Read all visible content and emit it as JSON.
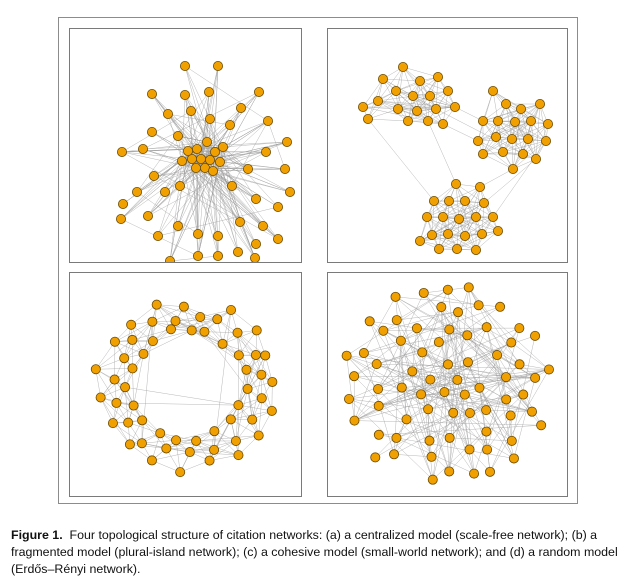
{
  "caption": {
    "label": "Figure 1.",
    "text": "Four topological structure of citation networks: (a) a centralized model (scale-free network); (b) a fragmented model (plural-island network); (c) a cohesive model (small-world network); and (d) a random model (Erdős–Rényi network)."
  },
  "colors": {
    "node_fill": "#f0a000",
    "node_stroke": "#6b4a00",
    "edge": "#9a9a9a",
    "frame": "#8c8c8c"
  },
  "panels": [
    {
      "id": "a",
      "model": "centralized",
      "network": "scale-free"
    },
    {
      "id": "b",
      "model": "fragmented",
      "network": "plural-island"
    },
    {
      "id": "c",
      "model": "cohesive",
      "network": "small-world"
    },
    {
      "id": "d",
      "model": "random",
      "network": "Erdős–Rényi"
    }
  ]
}
